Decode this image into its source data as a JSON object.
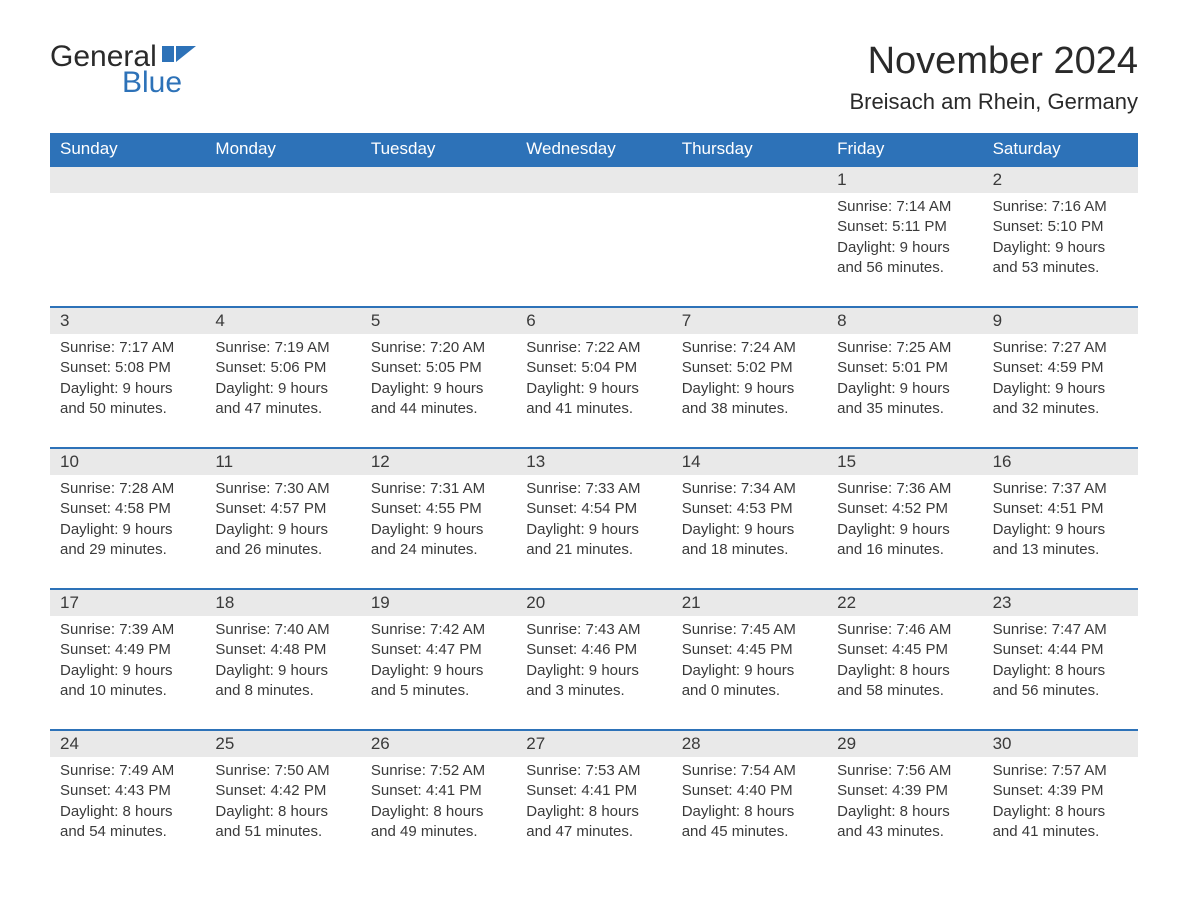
{
  "logo": {
    "text1": "General",
    "text2": "Blue",
    "shape_color": "#2d72b8"
  },
  "title": "November 2024",
  "location": "Breisach am Rhein, Germany",
  "colors": {
    "header_bg": "#2d72b8",
    "header_fg": "#ffffff",
    "daybar_bg": "#e9e9e9",
    "text": "#3a3a3a",
    "row_border": "#2d72b8",
    "page_bg": "#ffffff"
  },
  "typography": {
    "title_fontsize": 38,
    "location_fontsize": 22,
    "weekday_fontsize": 17,
    "daynum_fontsize": 17,
    "body_fontsize": 15
  },
  "layout": {
    "columns": 7,
    "rows": 5
  },
  "weekdays": [
    "Sunday",
    "Monday",
    "Tuesday",
    "Wednesday",
    "Thursday",
    "Friday",
    "Saturday"
  ],
  "labels": {
    "sunrise": "Sunrise:",
    "sunset": "Sunset:",
    "daylight": "Daylight:"
  },
  "weeks": [
    [
      null,
      null,
      null,
      null,
      null,
      {
        "n": "1",
        "sunrise": "7:14 AM",
        "sunset": "5:11 PM",
        "daylight": "9 hours and 56 minutes."
      },
      {
        "n": "2",
        "sunrise": "7:16 AM",
        "sunset": "5:10 PM",
        "daylight": "9 hours and 53 minutes."
      }
    ],
    [
      {
        "n": "3",
        "sunrise": "7:17 AM",
        "sunset": "5:08 PM",
        "daylight": "9 hours and 50 minutes."
      },
      {
        "n": "4",
        "sunrise": "7:19 AM",
        "sunset": "5:06 PM",
        "daylight": "9 hours and 47 minutes."
      },
      {
        "n": "5",
        "sunrise": "7:20 AM",
        "sunset": "5:05 PM",
        "daylight": "9 hours and 44 minutes."
      },
      {
        "n": "6",
        "sunrise": "7:22 AM",
        "sunset": "5:04 PM",
        "daylight": "9 hours and 41 minutes."
      },
      {
        "n": "7",
        "sunrise": "7:24 AM",
        "sunset": "5:02 PM",
        "daylight": "9 hours and 38 minutes."
      },
      {
        "n": "8",
        "sunrise": "7:25 AM",
        "sunset": "5:01 PM",
        "daylight": "9 hours and 35 minutes."
      },
      {
        "n": "9",
        "sunrise": "7:27 AM",
        "sunset": "4:59 PM",
        "daylight": "9 hours and 32 minutes."
      }
    ],
    [
      {
        "n": "10",
        "sunrise": "7:28 AM",
        "sunset": "4:58 PM",
        "daylight": "9 hours and 29 minutes."
      },
      {
        "n": "11",
        "sunrise": "7:30 AM",
        "sunset": "4:57 PM",
        "daylight": "9 hours and 26 minutes."
      },
      {
        "n": "12",
        "sunrise": "7:31 AM",
        "sunset": "4:55 PM",
        "daylight": "9 hours and 24 minutes."
      },
      {
        "n": "13",
        "sunrise": "7:33 AM",
        "sunset": "4:54 PM",
        "daylight": "9 hours and 21 minutes."
      },
      {
        "n": "14",
        "sunrise": "7:34 AM",
        "sunset": "4:53 PM",
        "daylight": "9 hours and 18 minutes."
      },
      {
        "n": "15",
        "sunrise": "7:36 AM",
        "sunset": "4:52 PM",
        "daylight": "9 hours and 16 minutes."
      },
      {
        "n": "16",
        "sunrise": "7:37 AM",
        "sunset": "4:51 PM",
        "daylight": "9 hours and 13 minutes."
      }
    ],
    [
      {
        "n": "17",
        "sunrise": "7:39 AM",
        "sunset": "4:49 PM",
        "daylight": "9 hours and 10 minutes."
      },
      {
        "n": "18",
        "sunrise": "7:40 AM",
        "sunset": "4:48 PM",
        "daylight": "9 hours and 8 minutes."
      },
      {
        "n": "19",
        "sunrise": "7:42 AM",
        "sunset": "4:47 PM",
        "daylight": "9 hours and 5 minutes."
      },
      {
        "n": "20",
        "sunrise": "7:43 AM",
        "sunset": "4:46 PM",
        "daylight": "9 hours and 3 minutes."
      },
      {
        "n": "21",
        "sunrise": "7:45 AM",
        "sunset": "4:45 PM",
        "daylight": "9 hours and 0 minutes."
      },
      {
        "n": "22",
        "sunrise": "7:46 AM",
        "sunset": "4:45 PM",
        "daylight": "8 hours and 58 minutes."
      },
      {
        "n": "23",
        "sunrise": "7:47 AM",
        "sunset": "4:44 PM",
        "daylight": "8 hours and 56 minutes."
      }
    ],
    [
      {
        "n": "24",
        "sunrise": "7:49 AM",
        "sunset": "4:43 PM",
        "daylight": "8 hours and 54 minutes."
      },
      {
        "n": "25",
        "sunrise": "7:50 AM",
        "sunset": "4:42 PM",
        "daylight": "8 hours and 51 minutes."
      },
      {
        "n": "26",
        "sunrise": "7:52 AM",
        "sunset": "4:41 PM",
        "daylight": "8 hours and 49 minutes."
      },
      {
        "n": "27",
        "sunrise": "7:53 AM",
        "sunset": "4:41 PM",
        "daylight": "8 hours and 47 minutes."
      },
      {
        "n": "28",
        "sunrise": "7:54 AM",
        "sunset": "4:40 PM",
        "daylight": "8 hours and 45 minutes."
      },
      {
        "n": "29",
        "sunrise": "7:56 AM",
        "sunset": "4:39 PM",
        "daylight": "8 hours and 43 minutes."
      },
      {
        "n": "30",
        "sunrise": "7:57 AM",
        "sunset": "4:39 PM",
        "daylight": "8 hours and 41 minutes."
      }
    ]
  ]
}
